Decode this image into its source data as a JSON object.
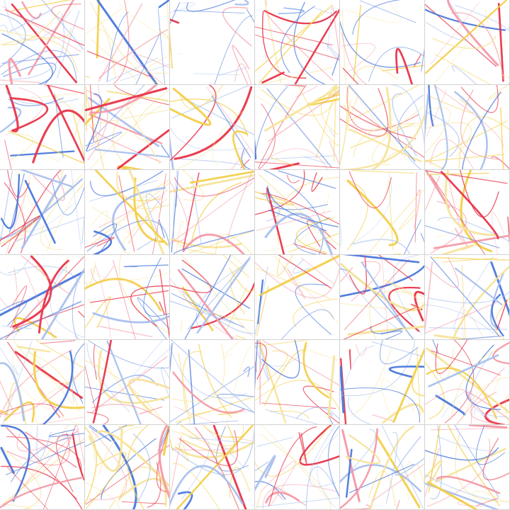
{
  "artwork": {
    "grid": {
      "rows": 6,
      "columns": 6
    },
    "palette": {
      "red": "#e8354a",
      "pink": "#f39aa6",
      "blue": "#4a78db",
      "light_blue": "#a9c0ee",
      "yellow": "#f3cf4a",
      "light_yellow": "#f7e39a",
      "grid_line": "#d2d2d2",
      "background": "#ffffff"
    },
    "stroke_style": "random straight and arc strokes in red, blue and yellow tones over white"
  }
}
